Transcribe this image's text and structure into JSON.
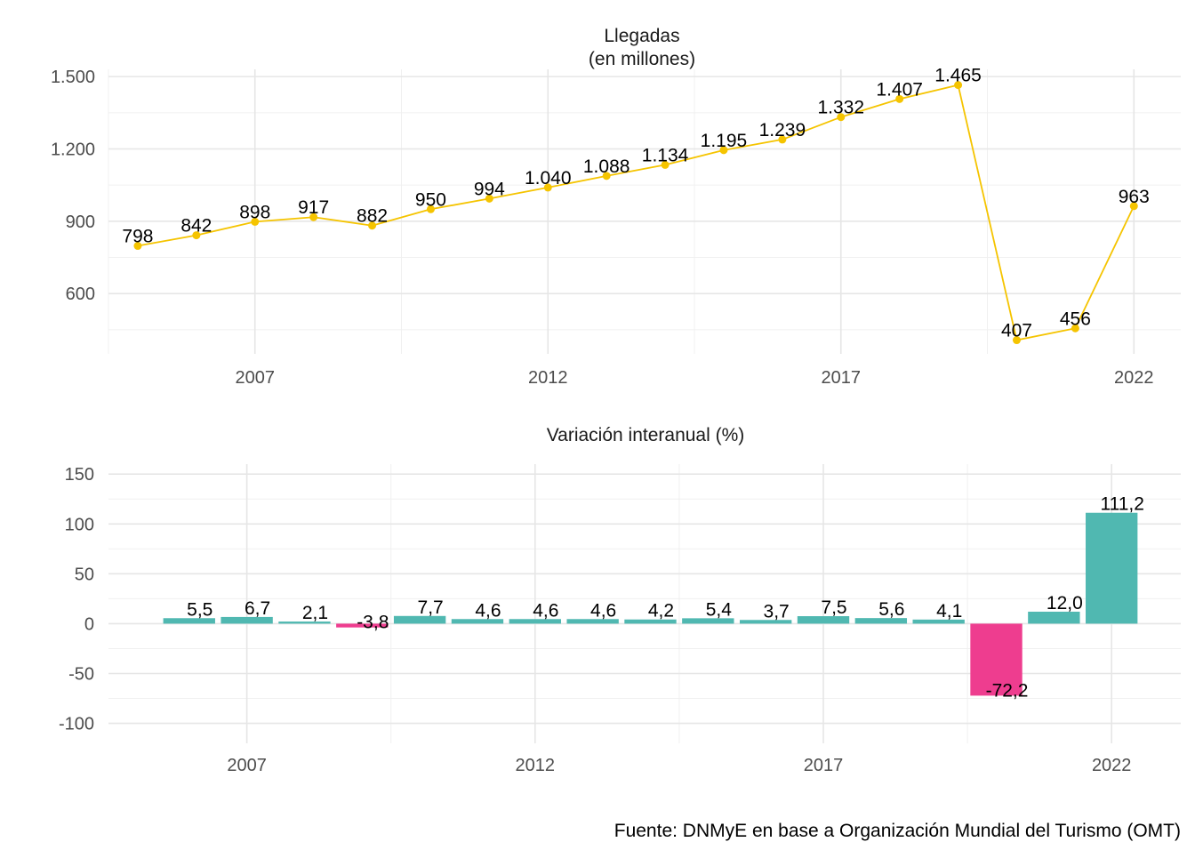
{
  "caption": "Fuente: DNMyE en base a Organización Mundial del Turismo (OMT)",
  "colors": {
    "line": "#F5C400",
    "bar_positive": "#50B8B1",
    "bar_negative": "#EE3D8F",
    "grid": "#e6e6e6"
  },
  "chart_data": [
    {
      "type": "line",
      "title": "Llegadas\n(en millones)",
      "x": [
        2005,
        2006,
        2007,
        2008,
        2009,
        2010,
        2011,
        2012,
        2013,
        2014,
        2015,
        2016,
        2017,
        2018,
        2019,
        2020,
        2021,
        2022
      ],
      "series": [
        {
          "values": [
            798,
            842,
            898,
            917,
            882,
            950,
            994,
            1040,
            1088,
            1134,
            1195,
            1239,
            1332,
            1407,
            1465,
            407,
            456,
            963
          ],
          "labels": [
            "798",
            "842",
            "898",
            "917",
            "882",
            "950",
            "994",
            "1.040",
            "1.088",
            "1.134",
            "1.195",
            "1.239",
            "1.332",
            "1.407",
            "1.465",
            "407",
            "456",
            "963"
          ]
        }
      ],
      "x_ticks": [
        2007,
        2012,
        2017,
        2022
      ],
      "x_tick_labels": [
        "2007",
        "2012",
        "2017",
        "2022"
      ],
      "y_ticks": [
        600,
        900,
        1200,
        1500
      ],
      "y_tick_labels": [
        "600",
        "900",
        "1.200",
        "1.500"
      ],
      "xlim": [
        2004.5,
        2022.8
      ],
      "ylim": [
        350,
        1530
      ],
      "grid": true
    },
    {
      "type": "bar",
      "title": "Variación interanual (%)",
      "x": [
        2006,
        2007,
        2008,
        2009,
        2010,
        2011,
        2012,
        2013,
        2014,
        2015,
        2016,
        2017,
        2018,
        2019,
        2020,
        2021,
        2022
      ],
      "series": [
        {
          "values": [
            5.5,
            6.7,
            2.1,
            -3.8,
            7.7,
            4.6,
            4.6,
            4.6,
            4.2,
            5.4,
            3.7,
            7.5,
            5.6,
            4.1,
            -72.2,
            12.0,
            111.2
          ],
          "labels": [
            "5,5",
            "6,7",
            "2,1",
            "-3,8",
            "7,7",
            "4,6",
            "4,6",
            "4,6",
            "4,2",
            "5,4",
            "3,7",
            "7,5",
            "5,6",
            "4,1",
            "-72,2",
            "12,0",
            "111,2"
          ]
        }
      ],
      "x_ticks": [
        2007,
        2012,
        2017,
        2022
      ],
      "x_tick_labels": [
        "2007",
        "2012",
        "2017",
        "2022"
      ],
      "y_ticks": [
        -100,
        -50,
        0,
        50,
        100,
        150
      ],
      "y_tick_labels": [
        "-100",
        "-50",
        "0",
        "50",
        "100",
        "150"
      ],
      "xlim": [
        2004.6,
        2023.2
      ],
      "ylim": [
        -120,
        160
      ],
      "grid": true
    }
  ]
}
